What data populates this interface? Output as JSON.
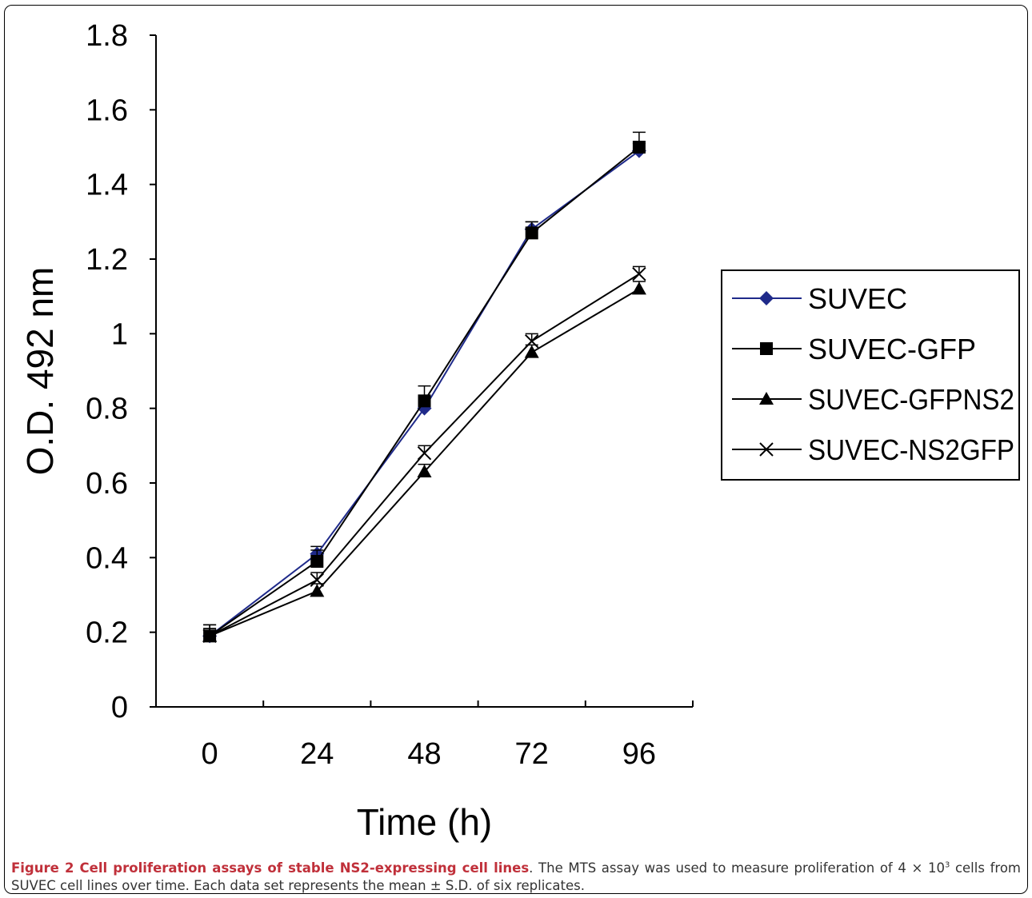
{
  "chart_data": {
    "type": "line",
    "xlabel": "Time (h)",
    "ylabel": "O.D. 492 nm",
    "categories": [
      "0",
      "24",
      "48",
      "72",
      "96"
    ],
    "ylim": [
      0,
      1.8
    ],
    "yticks": [
      "0",
      "0.2",
      "0.4",
      "0.6",
      "0.8",
      "1",
      "1.2",
      "1.4",
      "1.6",
      "1.8"
    ],
    "grid": false,
    "legend_position": "right",
    "series": [
      {
        "name": "SUVEC",
        "marker": "diamond",
        "color": "#1f2a8a",
        "values": [
          0.19,
          0.41,
          0.8,
          1.28,
          1.49
        ],
        "errors": [
          0.03,
          0.02,
          0.03,
          0.02,
          0.02
        ]
      },
      {
        "name": "SUVEC-GFP",
        "marker": "square",
        "color": "#000000",
        "values": [
          0.19,
          0.39,
          0.82,
          1.27,
          1.5
        ],
        "errors": [
          0.03,
          0.03,
          0.04,
          0.03,
          0.04
        ]
      },
      {
        "name": "SUVEC-GFPNS2",
        "marker": "triangle",
        "color": "#000000",
        "values": [
          0.19,
          0.31,
          0.63,
          0.95,
          1.12
        ],
        "errors": [
          0.02,
          0.02,
          0.02,
          0.02,
          0.02
        ]
      },
      {
        "name": "SUVEC-NS2GFP",
        "marker": "x",
        "color": "#000000",
        "values": [
          0.19,
          0.34,
          0.68,
          0.98,
          1.16
        ],
        "errors": [
          0.02,
          0.02,
          0.02,
          0.02,
          0.02
        ]
      }
    ]
  },
  "caption": {
    "label": "Figure 2 Cell proliferation assays of stable NS2-expressing cell lines",
    "text_before": ". The MTS assay was used to measure proliferation of 4 × 10",
    "superscript": "3",
    "text_after": " cells from SUVEC cell lines over time. Each data set represents the mean ± S.D. of six replicates."
  }
}
